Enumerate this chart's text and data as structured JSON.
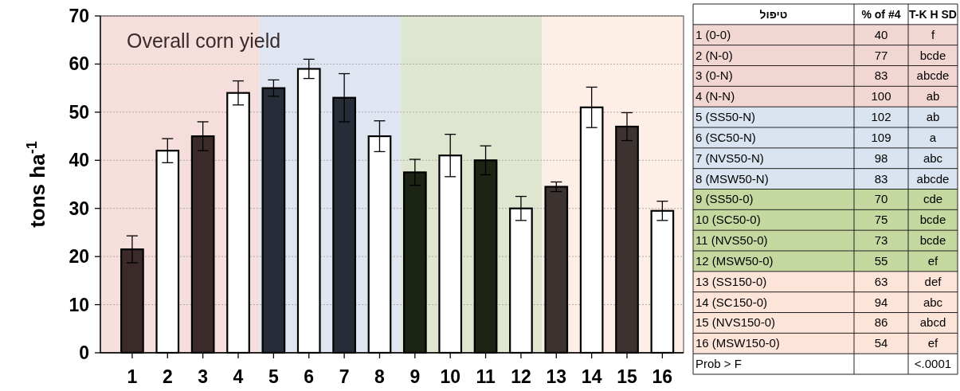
{
  "chart_data": [
    {
      "type": "bar",
      "title": "Overall corn yield",
      "ylabel": "tons ha$^{-1}$",
      "x": [
        1,
        2,
        3,
        4,
        5,
        6,
        7,
        8,
        9,
        10,
        11,
        12,
        13,
        14,
        15,
        16
      ],
      "values": [
        21.5,
        42,
        45,
        54,
        55,
        59,
        53,
        45,
        37.5,
        41,
        40,
        30,
        34.5,
        51,
        47,
        29.5
      ],
      "errors": [
        2.8,
        2.5,
        3,
        2.5,
        1.7,
        2,
        5,
        3.2,
        2.7,
        4.4,
        3,
        2.5,
        1,
        4.2,
        2.9,
        2
      ],
      "colors": [
        "#3a2a2a",
        "#ffffff",
        "#3a2a2a",
        "#ffffff",
        "#262c38",
        "#ffffff",
        "#262c38",
        "#ffffff",
        "#1c2414",
        "#ffffff",
        "#1c2414",
        "#ffffff",
        "#3c3330",
        "#ffffff",
        "#3c3330",
        "#ffffff"
      ],
      "xlim": [
        0.1,
        16.6
      ],
      "xticks": [
        1,
        2,
        3,
        4,
        5,
        6,
        7,
        8,
        9,
        10,
        11,
        12,
        13,
        14,
        15,
        16
      ],
      "ylim": [
        0,
        70
      ],
      "yticks": [
        0,
        10,
        20,
        30,
        40,
        50,
        60,
        70
      ],
      "grid": "y",
      "bands": [
        {
          "axis": "x",
          "from": 0.1,
          "to": 4.6,
          "color": "#f5dedb"
        },
        {
          "axis": "x",
          "from": 4.6,
          "to": 8.6,
          "color": "#dfe6f2"
        },
        {
          "axis": "x",
          "from": 8.6,
          "to": 12.6,
          "color": "#dfe6cf"
        },
        {
          "axis": "x",
          "from": 12.6,
          "to": 16.6,
          "color": "#fdeee6"
        }
      ]
    },
    {
      "type": "other",
      "data_labels": true,
      "categories": [
        "1 (0-0)",
        "2 (N-0)",
        "3 (0-N)",
        "4 (N-N)",
        "5 (SS50-N)",
        "6 (SC50-N)",
        "7 (NVS50-N)",
        "8 (MSW50-N)",
        "9 (SS50-0)",
        "10 (SC50-0)",
        "11 (NVS50-0)",
        "12 (MSW50-0)",
        "13 (SS150-0)",
        "14 (SC150-0)",
        "15 (NVS150-0)",
        "16 (MSW150-0)",
        "Prob > F"
      ],
      "values": [
        40,
        77,
        83,
        100,
        102,
        109,
        98,
        83,
        70,
        75,
        73,
        55,
        63,
        94,
        86,
        54,
        null
      ],
      "colors": [
        "#f2d6d2",
        "#f2d6d2",
        "#f2d6d2",
        "#f2d6d2",
        "#dae3f0",
        "#dae3f0",
        "#dae3f0",
        "#dae3f0",
        "#c4d89f",
        "#c4d89f",
        "#c4d89f",
        "#c4d89f",
        "#fde4d8",
        "#fde4d8",
        "#fde4d8",
        "#fde4d8",
        "#ffffff"
      ],
      "annotations": [
        "טיפול",
        "% of #4",
        "T-K H SD",
        "f",
        "bcde",
        "abcde",
        "ab",
        "ab",
        "a",
        "abc",
        "abcde",
        "cde",
        "bcde",
        "bcde",
        "ef",
        "def",
        "abc",
        "abcd",
        "ef",
        "<.0001"
      ]
    }
  ]
}
